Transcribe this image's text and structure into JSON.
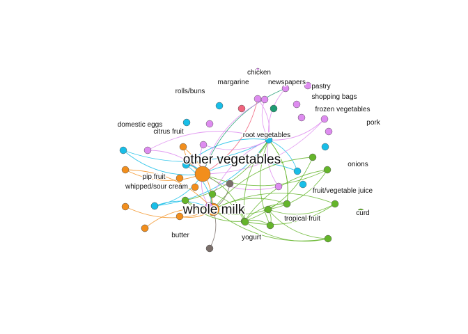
{
  "graph": {
    "colors": {
      "orange": "#F28E1C",
      "green": "#64B52A",
      "cyan": "#18BEE8",
      "violet": "#DE8CF0",
      "pink": "#F0647E",
      "teal": "#1E9B73",
      "gray": "#7A6E6A"
    },
    "nodes": [
      {
        "id": "other_vegetables",
        "label": "other vegetables",
        "color": "orange",
        "size": 11,
        "big": true
      },
      {
        "id": "whole_milk",
        "label": "whole milk",
        "color": "orange",
        "size": 9,
        "big": true
      },
      {
        "id": "root_vegetables",
        "label": "root vegetables",
        "color": "cyan",
        "size": 5
      },
      {
        "id": "chicken",
        "label": "chicken",
        "color": "violet",
        "size": 5
      },
      {
        "id": "margarine",
        "label": "margarine",
        "color": "pink",
        "size": 5
      },
      {
        "id": "newspapers",
        "label": "newspapers",
        "color": "teal",
        "size": 5
      },
      {
        "id": "pastry",
        "label": "pastry",
        "color": "violet",
        "size": 5
      },
      {
        "id": "shopping_bags",
        "label": "shopping bags",
        "color": "violet",
        "size": 5
      },
      {
        "id": "frozen_vegetables",
        "label": "frozen vegetables",
        "color": "violet",
        "size": 5
      },
      {
        "id": "pork",
        "label": "pork",
        "color": "violet",
        "size": 5
      },
      {
        "id": "rolls_buns",
        "label": "rolls/buns",
        "color": "cyan",
        "size": 5
      },
      {
        "id": "domestic_eggs",
        "label": "domestic eggs",
        "color": "cyan",
        "size": 5
      },
      {
        "id": "citrus_fruit",
        "label": "citrus fruit",
        "color": "violet",
        "size": 5
      },
      {
        "id": "onions",
        "label": "onions",
        "color": "cyan",
        "size": 5
      },
      {
        "id": "pip_fruit",
        "label": "pip fruit",
        "color": "orange",
        "size": 5
      },
      {
        "id": "whipped_sour_cream",
        "label": "whipped/sour cream",
        "color": "orange",
        "size": 5
      },
      {
        "id": "fruit_vegetable_juice",
        "label": "fruit/vegetable juice",
        "color": "cyan",
        "size": 5
      },
      {
        "id": "curd",
        "label": "curd",
        "color": "green",
        "size": 5
      },
      {
        "id": "tropical_fruit",
        "label": "tropical fruit",
        "color": "green",
        "size": 5
      },
      {
        "id": "butter",
        "label": "butter",
        "color": "orange",
        "size": 5
      },
      {
        "id": "yogurt",
        "label": "yogurt",
        "color": "green",
        "size": 5
      },
      {
        "id": "r1",
        "color": "cyan",
        "size": 5
      },
      {
        "id": "r2",
        "color": "violet",
        "size": 5
      },
      {
        "id": "r3",
        "color": "violet",
        "size": 5
      },
      {
        "id": "r4",
        "color": "violet",
        "size": 5
      },
      {
        "id": "r5",
        "color": "violet",
        "size": 5
      },
      {
        "id": "r6",
        "color": "violet",
        "size": 5
      },
      {
        "id": "r7",
        "color": "violet",
        "size": 5
      },
      {
        "id": "r8",
        "color": "violet",
        "size": 5
      },
      {
        "id": "r9",
        "color": "orange",
        "size": 5
      },
      {
        "id": "r10",
        "color": "green",
        "size": 5
      },
      {
        "id": "r11",
        "color": "cyan",
        "size": 5
      },
      {
        "id": "r12",
        "color": "cyan",
        "size": 5
      },
      {
        "id": "r13",
        "color": "cyan",
        "size": 5
      },
      {
        "id": "r14",
        "color": "green",
        "size": 5
      },
      {
        "id": "r15",
        "color": "green",
        "size": 5
      },
      {
        "id": "r16",
        "color": "green",
        "size": 5
      },
      {
        "id": "r17",
        "color": "green",
        "size": 5
      },
      {
        "id": "r18",
        "color": "gray",
        "size": 5
      },
      {
        "id": "r19",
        "color": "violet",
        "size": 5
      },
      {
        "id": "r20",
        "color": "green",
        "size": 5
      },
      {
        "id": "r21",
        "color": "green",
        "size": 5
      },
      {
        "id": "r22",
        "color": "green",
        "size": 5
      },
      {
        "id": "r23",
        "color": "green",
        "size": 5
      },
      {
        "id": "r24",
        "color": "orange",
        "size": 5
      },
      {
        "id": "r25",
        "color": "orange",
        "size": 5
      },
      {
        "id": "r26",
        "color": "cyan",
        "size": 5
      },
      {
        "id": "r27",
        "color": "orange",
        "size": 5
      },
      {
        "id": "r28",
        "color": "gray",
        "size": 5
      },
      {
        "id": "r29",
        "color": "orange",
        "size": 5
      },
      {
        "id": "r30",
        "color": "green",
        "size": 5
      },
      {
        "id": "r31",
        "color": "cyan",
        "size": 5
      }
    ],
    "edges": [
      [
        "r1",
        "root_vegetables",
        "cyan"
      ],
      [
        "r2",
        "root_vegetables",
        "violet"
      ],
      [
        "r3",
        "root_vegetables",
        "violet"
      ],
      [
        "r4",
        "root_vegetables",
        "violet"
      ],
      [
        "r5",
        "root_vegetables",
        "violet"
      ],
      [
        "r6",
        "root_vegetables",
        "violet"
      ],
      [
        "r7",
        "root_vegetables",
        "violet"
      ],
      [
        "r8",
        "root_vegetables",
        "violet"
      ],
      [
        "r11",
        "root_vegetables",
        "cyan"
      ],
      [
        "r12",
        "root_vegetables",
        "cyan"
      ],
      [
        "r13",
        "root_vegetables",
        "cyan"
      ],
      [
        "r19",
        "root_vegetables",
        "violet"
      ],
      [
        "r1",
        "other_vegetables",
        "cyan"
      ],
      [
        "r2",
        "other_vegetables",
        "violet"
      ],
      [
        "r3",
        "other_vegetables",
        "violet"
      ],
      [
        "r4",
        "other_vegetables",
        "pink"
      ],
      [
        "r5",
        "other_vegetables",
        "teal"
      ],
      [
        "r6",
        "other_vegetables",
        "violet"
      ],
      [
        "r7",
        "other_vegetables",
        "violet"
      ],
      [
        "r8",
        "other_vegetables",
        "violet"
      ],
      [
        "r11",
        "other_vegetables",
        "cyan"
      ],
      [
        "r12",
        "other_vegetables",
        "cyan"
      ],
      [
        "r13",
        "other_vegetables",
        "cyan"
      ],
      [
        "r19",
        "other_vegetables",
        "violet"
      ],
      [
        "r9",
        "other_vegetables",
        "orange"
      ],
      [
        "r26",
        "other_vegetables",
        "cyan"
      ],
      [
        "r24",
        "other_vegetables",
        "orange"
      ],
      [
        "r24",
        "whole_milk",
        "orange"
      ],
      [
        "r25",
        "whole_milk",
        "orange"
      ],
      [
        "r9",
        "whole_milk",
        "orange"
      ],
      [
        "r27",
        "whole_milk",
        "orange"
      ],
      [
        "r26",
        "whole_milk",
        "cyan"
      ],
      [
        "r28",
        "whole_milk",
        "gray"
      ],
      [
        "r29",
        "whole_milk",
        "orange"
      ],
      [
        "r30",
        "whole_milk",
        "green"
      ],
      [
        "r31",
        "whole_milk",
        "cyan"
      ],
      [
        "r10",
        "whole_milk",
        "green"
      ],
      [
        "r18",
        "whole_milk",
        "gray"
      ],
      [
        "r14",
        "yogurt",
        "green"
      ],
      [
        "r15",
        "yogurt",
        "green"
      ],
      [
        "r16",
        "yogurt",
        "green"
      ],
      [
        "r17",
        "yogurt",
        "green"
      ],
      [
        "r20",
        "yogurt",
        "green"
      ],
      [
        "r21",
        "yogurt",
        "green"
      ],
      [
        "r22",
        "yogurt",
        "green"
      ],
      [
        "r23",
        "yogurt",
        "green"
      ],
      [
        "r14",
        "tropical_fruit",
        "green"
      ],
      [
        "r15",
        "tropical_fruit",
        "green"
      ],
      [
        "r16",
        "tropical_fruit",
        "green"
      ],
      [
        "r17",
        "tropical_fruit",
        "green"
      ],
      [
        "r20",
        "tropical_fruit",
        "green"
      ],
      [
        "r22",
        "tropical_fruit",
        "green"
      ],
      [
        "r14",
        "root_vegetables",
        "green"
      ],
      [
        "r16",
        "root_vegetables",
        "green"
      ],
      [
        "r20",
        "root_vegetables",
        "green"
      ],
      [
        "r21",
        "root_vegetables",
        "green"
      ],
      [
        "r15",
        "whole_milk",
        "green"
      ],
      [
        "r17",
        "whole_milk",
        "green"
      ],
      [
        "r23",
        "whole_milk",
        "green"
      ],
      [
        "r22",
        "other_vegetables",
        "green"
      ],
      [
        "r21",
        "other_vegetables",
        "green"
      ],
      [
        "r10",
        "yogurt",
        "green"
      ],
      [
        "r30",
        "root_vegetables",
        "green"
      ]
    ]
  }
}
